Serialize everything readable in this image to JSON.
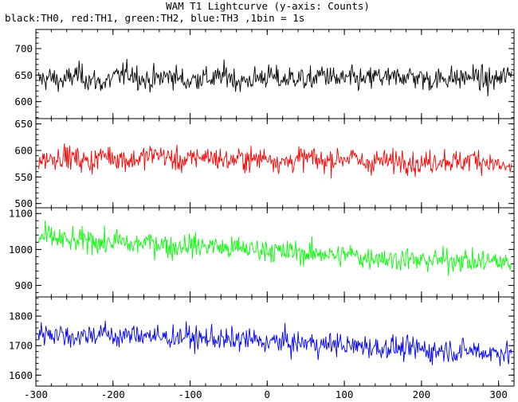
{
  "chart_data": {
    "type": "line",
    "title": "WAM T1 Lightcurve (y-axis: Counts)",
    "subtitle": "black:TH0, red:TH1, green:TH2, blue:TH3 ,1bin = 1s",
    "xlim": [
      -300,
      320
    ],
    "x_ticks": [
      -300,
      -200,
      -100,
      0,
      100,
      200,
      300
    ],
    "grid": false,
    "panels": [
      {
        "name": "TH0",
        "color": "#000000",
        "ylim": [
          568,
          736
        ],
        "y_ticks": [
          600,
          650,
          700
        ],
        "values": [
          640,
          645,
          638,
          652,
          641,
          635,
          648,
          655,
          639,
          644,
          650,
          637,
          646,
          642,
          651,
          636,
          643,
          649,
          640,
          647,
          638,
          653,
          641,
          644,
          639,
          648,
          642,
          650,
          645,
          640,
          646,
          643,
          649,
          638,
          644,
          652
        ]
      },
      {
        "name": "TH1",
        "color": "#ff0000",
        "ylim": [
          492,
          660
        ],
        "y_ticks": [
          500,
          550,
          600,
          650
        ],
        "values": [
          582,
          585,
          590,
          584,
          578,
          592,
          586,
          581,
          588,
          594,
          583,
          579,
          590,
          587,
          580,
          585,
          582,
          589,
          576,
          583,
          586,
          579,
          584,
          588,
          575,
          581,
          578,
          585,
          572,
          580,
          583,
          576,
          586,
          579,
          570,
          565
        ]
      },
      {
        "name": "TH2",
        "color": "#00ff00",
        "ylim": [
          868,
          1116
        ],
        "y_ticks": [
          900,
          1000,
          1100
        ],
        "values": [
          1030,
          1035,
          1025,
          1020,
          1030,
          1015,
          1025,
          1010,
          1020,
          1018,
          1005,
          1015,
          1008,
          1012,
          1000,
          1005,
          998,
          1002,
          990,
          995,
          985,
          992,
          980,
          988,
          975,
          982,
          970,
          978,
          965,
          972,
          968,
          975,
          962,
          970,
          965,
          960
        ]
      },
      {
        "name": "TH3",
        "color": "#0000ff",
        "ylim": [
          1563,
          1865
        ],
        "y_ticks": [
          1600,
          1700,
          1800
        ],
        "values": [
          1740,
          1745,
          1735,
          1730,
          1738,
          1742,
          1728,
          1735,
          1740,
          1725,
          1730,
          1732,
          1720,
          1728,
          1715,
          1722,
          1718,
          1710,
          1715,
          1705,
          1712,
          1700,
          1708,
          1695,
          1702,
          1690,
          1698,
          1685,
          1692,
          1680,
          1688,
          1678,
          1685,
          1675,
          1680,
          1670
        ]
      }
    ]
  }
}
